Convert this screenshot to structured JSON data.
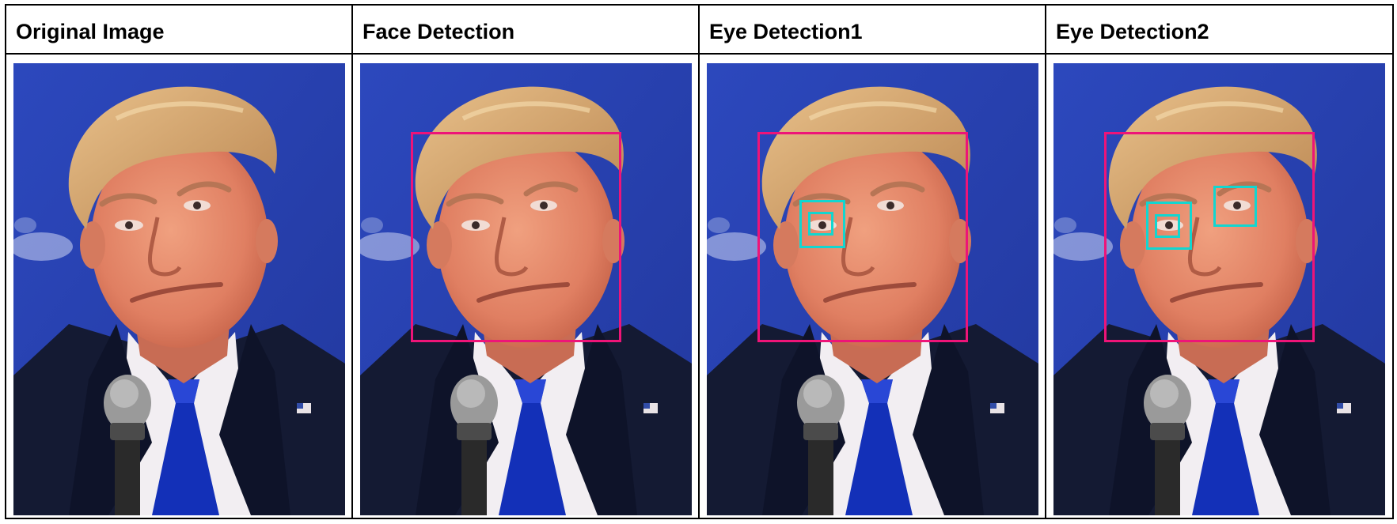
{
  "columns": [
    {
      "title": "Original Image",
      "face_box": false,
      "eye_boxes": []
    },
    {
      "title": "Face Detection",
      "face_box": true,
      "eye_boxes": []
    },
    {
      "title": "Eye Detection1",
      "face_box": true,
      "eye_boxes": [
        "left-eye-outer",
        "left-eye-inner"
      ]
    },
    {
      "title": "Eye Detection2",
      "face_box": true,
      "eye_boxes": [
        "left-eye-outer",
        "left-eye-inner",
        "right-eye"
      ]
    }
  ],
  "colors": {
    "face_box": "#ee1478",
    "eye_box": "#12d6d0",
    "background": "#2b45b5",
    "suit": "#141a33",
    "tie": "#1330b8",
    "skin": "#e8876a",
    "hair": "#d9a46c"
  }
}
